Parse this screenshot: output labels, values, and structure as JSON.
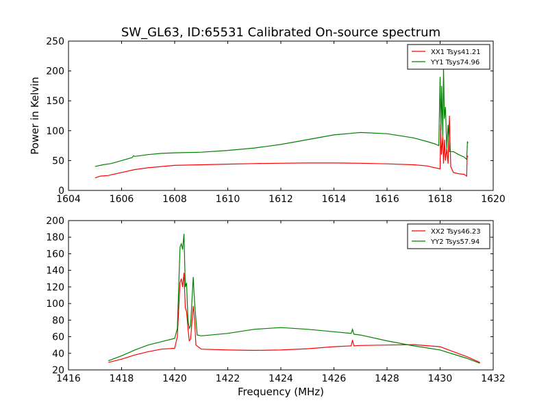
{
  "chart_data": [
    {
      "type": "line",
      "title": "SW_GL63, ID:65531 Calibrated On-source spectrum",
      "xlabel": "",
      "ylabel": "Power in Kelvin",
      "xlim": [
        1604,
        1620
      ],
      "ylim": [
        0,
        250
      ],
      "xticks": [
        1604,
        1606,
        1608,
        1610,
        1612,
        1614,
        1616,
        1618,
        1620
      ],
      "yticks": [
        0,
        50,
        100,
        150,
        200,
        250
      ],
      "grid": false,
      "legend_position": "top-right",
      "series": [
        {
          "name": "XX1 Tsys41.21",
          "color": "#ff0000",
          "points": [
            [
              1605.0,
              21
            ],
            [
              1605.2,
              24
            ],
            [
              1605.5,
              25
            ],
            [
              1606,
              30
            ],
            [
              1606.5,
              35
            ],
            [
              1607,
              38
            ],
            [
              1607.5,
              40
            ],
            [
              1608,
              42
            ],
            [
              1609,
              43
            ],
            [
              1610,
              44
            ],
            [
              1611,
              45
            ],
            [
              1612,
              45.5
            ],
            [
              1613,
              46
            ],
            [
              1614,
              46
            ],
            [
              1615,
              45.5
            ],
            [
              1616,
              44.5
            ],
            [
              1617,
              43
            ],
            [
              1617.5,
              41
            ],
            [
              1617.9,
              37
            ],
            [
              1618.0,
              36
            ],
            [
              1618.02,
              110
            ],
            [
              1618.05,
              60
            ],
            [
              1618.1,
              90
            ],
            [
              1618.13,
              45
            ],
            [
              1618.17,
              85
            ],
            [
              1618.2,
              50
            ],
            [
              1618.25,
              70
            ],
            [
              1618.3,
              45
            ],
            [
              1618.35,
              125
            ],
            [
              1618.4,
              40
            ],
            [
              1618.5,
              30
            ],
            [
              1618.7,
              28
            ],
            [
              1618.9,
              27
            ],
            [
              1619.0,
              24
            ],
            [
              1619.02,
              58
            ],
            [
              1619.05,
              56
            ]
          ]
        },
        {
          "name": "YY1 Tsys74.96",
          "color": "#008000",
          "points": [
            [
              1605.0,
              40
            ],
            [
              1605.3,
              43
            ],
            [
              1605.6,
              45
            ],
            [
              1606,
              50
            ],
            [
              1606.4,
              55
            ],
            [
              1606.45,
              58
            ],
            [
              1606.5,
              57
            ],
            [
              1607,
              60
            ],
            [
              1607.5,
              62
            ],
            [
              1608,
              63
            ],
            [
              1609,
              64
            ],
            [
              1610,
              67
            ],
            [
              1611,
              71
            ],
            [
              1612,
              77
            ],
            [
              1613,
              85
            ],
            [
              1614,
              93
            ],
            [
              1615,
              97
            ],
            [
              1616,
              95
            ],
            [
              1617,
              88
            ],
            [
              1617.5,
              82
            ],
            [
              1617.8,
              78
            ],
            [
              1617.95,
              75
            ],
            [
              1618.0,
              190
            ],
            [
              1618.03,
              100
            ],
            [
              1618.06,
              175
            ],
            [
              1618.1,
              90
            ],
            [
              1618.13,
              205
            ],
            [
              1618.16,
              120
            ],
            [
              1618.2,
              140
            ],
            [
              1618.25,
              70
            ],
            [
              1618.3,
              110
            ],
            [
              1618.35,
              65
            ],
            [
              1618.5,
              65
            ],
            [
              1618.7,
              60
            ],
            [
              1618.9,
              56
            ],
            [
              1619.0,
              52
            ],
            [
              1619.03,
              82
            ],
            [
              1619.05,
              79
            ]
          ]
        }
      ]
    },
    {
      "type": "line",
      "title": "",
      "xlabel": "Frequency (MHz)",
      "ylabel": "",
      "xlim": [
        1416,
        1432
      ],
      "ylim": [
        20,
        200
      ],
      "xticks": [
        1416,
        1418,
        1420,
        1422,
        1424,
        1426,
        1428,
        1430,
        1432
      ],
      "yticks": [
        20,
        40,
        60,
        80,
        100,
        120,
        140,
        160,
        180,
        200
      ],
      "grid": false,
      "legend_position": "top-right",
      "series": [
        {
          "name": "XX2 Tsys46.23",
          "color": "#ff0000",
          "points": [
            [
              1417.5,
              29
            ],
            [
              1418,
              33
            ],
            [
              1418.5,
              38
            ],
            [
              1419,
              42
            ],
            [
              1419.5,
              45
            ],
            [
              1420,
              46
            ],
            [
              1420.1,
              60
            ],
            [
              1420.2,
              125
            ],
            [
              1420.25,
              130
            ],
            [
              1420.3,
              120
            ],
            [
              1420.35,
              137
            ],
            [
              1420.4,
              95
            ],
            [
              1420.45,
              90
            ],
            [
              1420.5,
              70
            ],
            [
              1420.55,
              55
            ],
            [
              1420.6,
              57
            ],
            [
              1420.7,
              97
            ],
            [
              1420.75,
              80
            ],
            [
              1420.8,
              50
            ],
            [
              1421,
              45
            ],
            [
              1422,
              44
            ],
            [
              1423,
              43.5
            ],
            [
              1424,
              44
            ],
            [
              1425,
              45.5
            ],
            [
              1426,
              48
            ],
            [
              1426.65,
              49
            ],
            [
              1426.7,
              56
            ],
            [
              1426.75,
              49
            ],
            [
              1427,
              49.5
            ],
            [
              1428,
              50
            ],
            [
              1429,
              50.5
            ],
            [
              1430,
              48
            ],
            [
              1430.5,
              42
            ],
            [
              1431,
              36
            ],
            [
              1431.5,
              29
            ]
          ]
        },
        {
          "name": "YY2 Tsys57.94",
          "color": "#008000",
          "points": [
            [
              1417.5,
              31
            ],
            [
              1418,
              37
            ],
            [
              1418.5,
              44
            ],
            [
              1419,
              50
            ],
            [
              1419.5,
              54
            ],
            [
              1420,
              58
            ],
            [
              1420.1,
              70
            ],
            [
              1420.2,
              168
            ],
            [
              1420.25,
              172
            ],
            [
              1420.3,
              165
            ],
            [
              1420.35,
              184
            ],
            [
              1420.4,
              120
            ],
            [
              1420.45,
              125
            ],
            [
              1420.5,
              80
            ],
            [
              1420.55,
              70
            ],
            [
              1420.6,
              73
            ],
            [
              1420.7,
              132
            ],
            [
              1420.75,
              100
            ],
            [
              1420.85,
              62
            ],
            [
              1421,
              61
            ],
            [
              1422,
              64
            ],
            [
              1423,
              69
            ],
            [
              1424,
              71
            ],
            [
              1425,
              69
            ],
            [
              1426,
              66
            ],
            [
              1426.65,
              64
            ],
            [
              1426.7,
              69
            ],
            [
              1426.75,
              63
            ],
            [
              1427,
              62
            ],
            [
              1428,
              55
            ],
            [
              1429,
              49
            ],
            [
              1430,
              44
            ],
            [
              1430.5,
              39
            ],
            [
              1431,
              34
            ],
            [
              1431.5,
              28
            ]
          ]
        }
      ]
    }
  ]
}
